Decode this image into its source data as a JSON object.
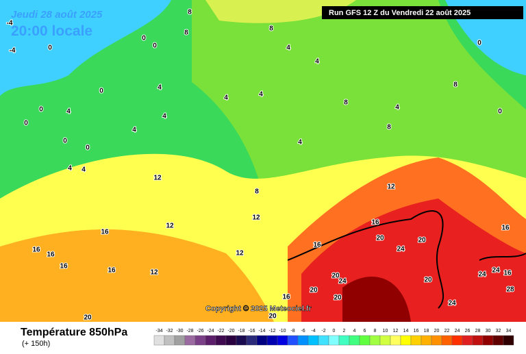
{
  "header": {
    "date": "Jeudi 28 août 2025",
    "time": "20:00 locale",
    "run": "Run GFS 12 Z du Vendredi 22 août 2025"
  },
  "copyright": "Copyright © 2025 Meteociel.fr",
  "footer": {
    "title": "Température 850hPa",
    "lead": "(+ 150h)"
  },
  "legend": {
    "values": [
      -34,
      -32,
      -30,
      -28,
      -26,
      -24,
      -22,
      -20,
      -18,
      -16,
      -14,
      -12,
      -10,
      -8,
      -6,
      -4,
      -2,
      0,
      2,
      4,
      6,
      8,
      10,
      12,
      14,
      16,
      18,
      20,
      22,
      24,
      26,
      28,
      30,
      32,
      34
    ],
    "colors": [
      "#e0e0e0",
      "#c0c0c0",
      "#a0a0a0",
      "#9a6aa0",
      "#7a3f86",
      "#5c1e6a",
      "#3f0a4f",
      "#2a0040",
      "#1a0a50",
      "#2a2a7a",
      "#000080",
      "#0000b0",
      "#0000e0",
      "#2050ff",
      "#0090ff",
      "#00c0ff",
      "#40e0ff",
      "#80ffff",
      "#40ffc0",
      "#40ff80",
      "#60ff40",
      "#a0ff40",
      "#d0ff40",
      "#ffff60",
      "#ffff00",
      "#ffd000",
      "#ffb000",
      "#ff9000",
      "#ff6000",
      "#ff3000",
      "#e02020",
      "#c01010",
      "#900000",
      "#600000",
      "#300000"
    ]
  },
  "contour_labels": [
    "8",
    "8",
    "8",
    "0",
    "0",
    "0",
    "-4",
    "-4",
    "0",
    "0",
    "0",
    "0",
    "0",
    "4",
    "4",
    "4",
    "4",
    "4",
    "4",
    "4",
    "4",
    "4",
    "4",
    "8",
    "8",
    "8",
    "4",
    "4",
    "0",
    "0",
    "8",
    "12",
    "12",
    "12",
    "12",
    "12",
    "12",
    "16",
    "16",
    "16",
    "16",
    "16",
    "16",
    "16",
    "16",
    "16",
    "20",
    "20",
    "20",
    "20",
    "20",
    "20",
    "24",
    "24",
    "24",
    "24",
    "24",
    "28",
    "20",
    "20",
    "16"
  ]
}
